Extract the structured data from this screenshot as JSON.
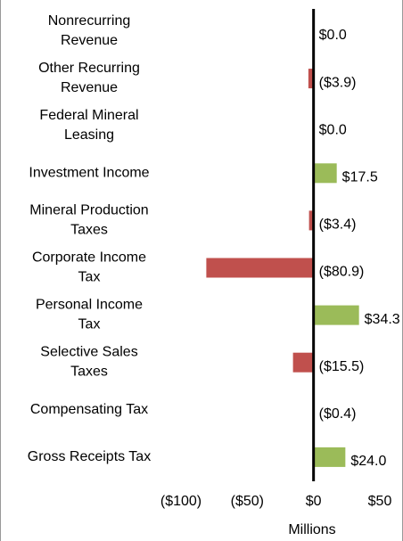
{
  "chart_data": {
    "type": "hbar",
    "categories": [
      "Nonrecurring Revenue",
      "Other Recurring Revenue",
      "Federal Mineral Leasing",
      "Investment Income",
      "Mineral Production Taxes",
      "Corporate Income Tax",
      "Personal Income Tax",
      "Selective Sales Taxes",
      "Compensating Tax",
      "Gross Receipts Tax"
    ],
    "values": [
      0.0,
      -3.9,
      0.0,
      17.5,
      -3.4,
      -80.9,
      34.3,
      -15.5,
      -0.4,
      24.0
    ],
    "value_labels": [
      "$0.0",
      "($3.9)",
      "$0.0",
      "$17.5",
      "($3.4)",
      "($80.9)",
      "$34.3",
      "($15.5)",
      "($0.4)",
      "$24.0"
    ],
    "positive_color": "#9bbb59",
    "negative_color": "#c0504d",
    "xlim": [
      -100,
      50
    ],
    "xticks": [
      {
        "value": -100,
        "label": "($100)"
      },
      {
        "value": -50,
        "label": "($50)"
      },
      {
        "value": 0,
        "label": "$0"
      },
      {
        "value": 50,
        "label": "$50"
      }
    ],
    "xlabel": "Millions",
    "grid": false
  }
}
